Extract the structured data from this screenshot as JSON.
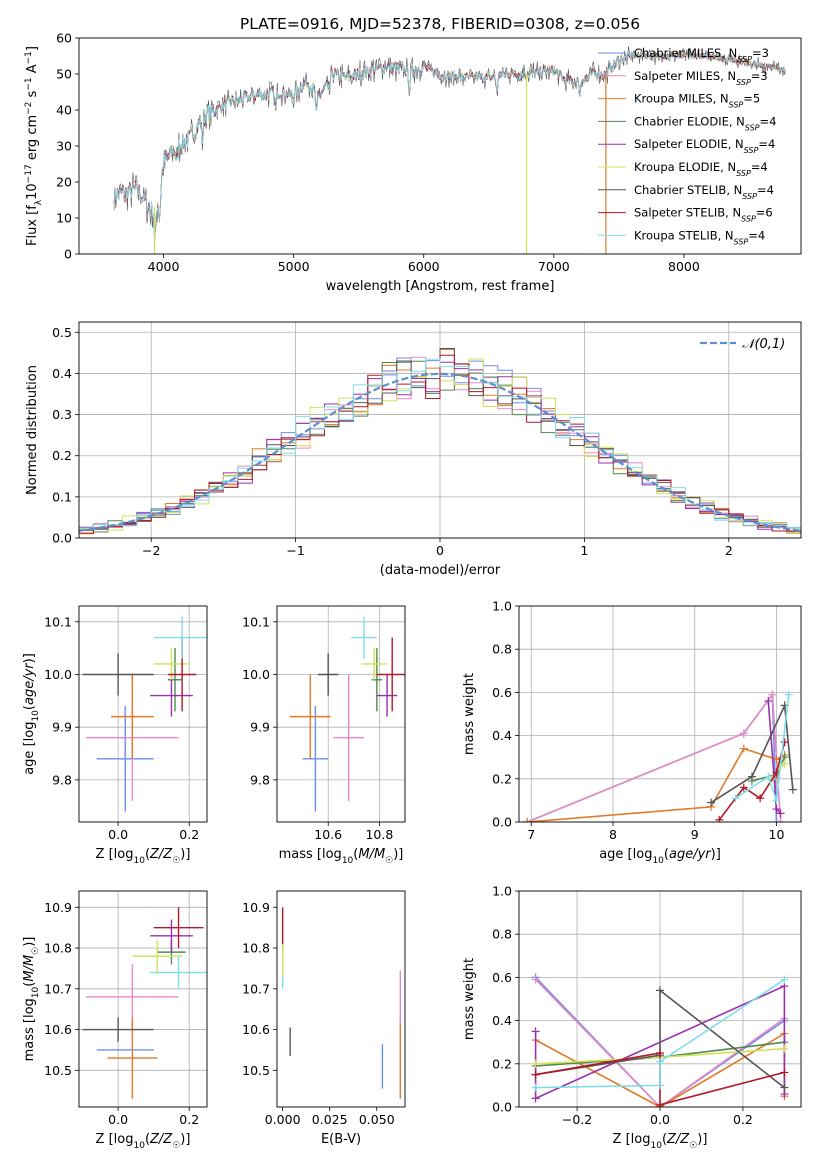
{
  "title": "PLATE=0916, MJD=52378, FIBERID=0308, z=0.056",
  "colors": {
    "chabrier_miles": "#6b8ee8",
    "salpeter_miles": "#e78ac3",
    "kroupa_miles": "#e07b29",
    "chabrier_elodie": "#4f8a4f",
    "salpeter_elodie": "#9b2fae",
    "kroupa_elodie": "#d4e157",
    "chabrier_stelib": "#555555",
    "salpeter_stelib": "#b2182b",
    "kroupa_stelib": "#80deea",
    "model_gauss": "#5b8fd1",
    "grid": "#b0b0b0"
  },
  "chart_data": [
    {
      "id": "spectrum",
      "type": "line",
      "xlabel": "wavelength [Angstrom, rest frame]",
      "ylabel": "Flux [fλ10⁻¹⁷ erg cm⁻² s⁻¹ A⁻¹]",
      "xlim": [
        3350,
        8900
      ],
      "ylim": [
        0,
        60
      ],
      "xticks": [
        4000,
        5000,
        6000,
        7000,
        8000
      ],
      "yticks": [
        0,
        10,
        20,
        30,
        40,
        50,
        60
      ],
      "grid": false,
      "legend": "upper right",
      "legend_entries": [
        {
          "key": "chabrier_miles",
          "label": "Chabrier MILES, N",
          "sub": "SSP",
          "tail": "=3"
        },
        {
          "key": "salpeter_miles",
          "label": "Salpeter MILES, N",
          "sub": "SSP",
          "tail": "=3"
        },
        {
          "key": "kroupa_miles",
          "label": "Kroupa MILES, N",
          "sub": "SSP",
          "tail": "=5"
        },
        {
          "key": "chabrier_elodie",
          "label": "Chabrier ELODIE, N",
          "sub": "SSP",
          "tail": "=4"
        },
        {
          "key": "salpeter_elodie",
          "label": "Salpeter ELODIE, N",
          "sub": "SSP",
          "tail": "=4"
        },
        {
          "key": "kroupa_elodie",
          "label": "Kroupa ELODIE, N",
          "sub": "SSP",
          "tail": "=4"
        },
        {
          "key": "chabrier_stelib",
          "label": "Chabrier STELIB, N",
          "sub": "SSP",
          "tail": "=4"
        },
        {
          "key": "salpeter_stelib",
          "label": "Salpeter STELIB, N",
          "sub": "SSP",
          "tail": "=6"
        },
        {
          "key": "kroupa_stelib",
          "label": "Kroupa STELIB, N",
          "sub": "SSP",
          "tail": "=4"
        }
      ],
      "spectrum_shape": {
        "x": [
          3620,
          3700,
          3800,
          3900,
          3950,
          4000,
          4100,
          4200,
          4300,
          4400,
          4500,
          4700,
          4900,
          5000,
          5100,
          5200,
          5300,
          5400,
          5500,
          5700,
          5900,
          6000,
          6100,
          6300,
          6500,
          6600,
          6800,
          7000,
          7100,
          7200,
          7300,
          7400,
          7500,
          7600,
          8200,
          8500,
          8800
        ],
        "y": [
          16,
          17,
          18,
          12,
          14,
          25,
          30,
          32,
          38,
          40,
          42,
          44,
          45,
          44,
          48,
          44,
          50,
          49,
          50,
          52,
          51,
          52,
          50,
          49,
          49,
          50,
          50,
          51,
          48,
          48,
          50,
          50,
          54,
          55,
          55,
          53,
          51
        ]
      },
      "model_dropouts": [
        {
          "key": "kroupa_elodie",
          "x": 3930
        },
        {
          "key": "kroupa_elodie",
          "x": 6790
        },
        {
          "key": "kroupa_miles",
          "x": 7400
        }
      ]
    },
    {
      "id": "residuals",
      "type": "bar",
      "xlabel": "(data-model)/error",
      "ylabel": "Normed distribution",
      "xlim": [
        -2.5,
        2.5
      ],
      "ylim": [
        0,
        0.525
      ],
      "xticks": [
        -2,
        -1,
        0,
        1,
        2
      ],
      "yticks": [
        0.0,
        0.1,
        0.2,
        0.3,
        0.4,
        0.5
      ],
      "grid": true,
      "legend": "upper right",
      "legend_label": "𝒩(0,1)",
      "bin_width": 0.1
    },
    {
      "id": "age_vs_Z",
      "type": "scatter",
      "xlabel": "Z [log₁₀(Z/Z☉)]",
      "ylabel": "age  [log₁₀(age/yr)]",
      "xlim": [
        -0.11,
        0.25
      ],
      "ylim": [
        9.72,
        10.13
      ],
      "xticks": [
        0.0,
        0.2
      ],
      "yticks": [
        9.8,
        9.9,
        10.0,
        10.1
      ],
      "grid": true,
      "points": [
        {
          "key": "chabrier_miles",
          "x": 0.02,
          "y": 9.84,
          "xerr": 0.08,
          "yerr": 0.1
        },
        {
          "key": "salpeter_miles",
          "x": 0.04,
          "y": 9.88,
          "xerr": 0.13,
          "yerr": 0.12
        },
        {
          "key": "kroupa_miles",
          "x": 0.04,
          "y": 9.92,
          "xerr": 0.06,
          "yerr": 0.08
        },
        {
          "key": "chabrier_elodie",
          "x": 0.16,
          "y": 9.99,
          "xerr": 0.02,
          "yerr": 0.06
        },
        {
          "key": "salpeter_elodie",
          "x": 0.15,
          "y": 9.96,
          "xerr": 0.06,
          "yerr": 0.04
        },
        {
          "key": "kroupa_elodie",
          "x": 0.15,
          "y": 10.02,
          "xerr": 0.05,
          "yerr": 0.03
        },
        {
          "key": "chabrier_stelib",
          "x": 0.0,
          "y": 10.0,
          "xerr": 0.1,
          "yerr": 0.04
        },
        {
          "key": "salpeter_stelib",
          "x": 0.18,
          "y": 10.0,
          "xerr": 0.04,
          "yerr": 0.07
        },
        {
          "key": "kroupa_stelib",
          "x": 0.18,
          "y": 10.07,
          "xerr": 0.08,
          "yerr": 0.04
        }
      ]
    },
    {
      "id": "age_vs_mass",
      "type": "scatter",
      "xlabel": "mass [log₁₀(M/M☉)]",
      "ylabel": "",
      "xlim": [
        10.4,
        10.9
      ],
      "ylim": [
        9.72,
        10.13
      ],
      "xticks": [
        10.6,
        10.8
      ],
      "yticks": [
        9.8,
        9.9,
        10.0,
        10.1
      ],
      "grid": true,
      "points": [
        {
          "key": "chabrier_miles",
          "x": 10.55,
          "y": 9.84,
          "xerr": 0.05,
          "yerr": 0.1
        },
        {
          "key": "salpeter_miles",
          "x": 10.68,
          "y": 9.88,
          "xerr": 0.06,
          "yerr": 0.12
        },
        {
          "key": "kroupa_miles",
          "x": 10.53,
          "y": 9.92,
          "xerr": 0.08,
          "yerr": 0.08
        },
        {
          "key": "chabrier_elodie",
          "x": 10.79,
          "y": 9.99,
          "xerr": 0.02,
          "yerr": 0.06
        },
        {
          "key": "salpeter_elodie",
          "x": 10.83,
          "y": 9.96,
          "xerr": 0.04,
          "yerr": 0.04
        },
        {
          "key": "kroupa_elodie",
          "x": 10.78,
          "y": 10.02,
          "xerr": 0.05,
          "yerr": 0.03
        },
        {
          "key": "chabrier_stelib",
          "x": 10.6,
          "y": 10.0,
          "xerr": 0.04,
          "yerr": 0.04
        },
        {
          "key": "salpeter_stelib",
          "x": 10.85,
          "y": 10.0,
          "xerr": 0.06,
          "yerr": 0.07
        },
        {
          "key": "kroupa_stelib",
          "x": 10.74,
          "y": 10.07,
          "xerr": 0.05,
          "yerr": 0.04
        }
      ]
    },
    {
      "id": "weight_vs_age",
      "type": "line",
      "xlabel": "age  [log₁₀(age/yr)]",
      "ylabel": "mass weight",
      "xlim": [
        6.85,
        10.3
      ],
      "ylim": [
        0,
        1.0
      ],
      "xticks": [
        7,
        8,
        9,
        10
      ],
      "yticks": [
        0.0,
        0.2,
        0.4,
        0.6,
        0.8,
        1.0
      ],
      "grid": true,
      "series": [
        {
          "key": "chabrier_miles",
          "x": [
            6.95,
            9.6,
            9.95,
            10.0
          ],
          "y": [
            0.0,
            0.41,
            0.59,
            0.0
          ]
        },
        {
          "key": "salpeter_miles",
          "x": [
            6.95,
            9.6,
            9.95,
            10.05
          ],
          "y": [
            0.0,
            0.41,
            0.59,
            0.0
          ]
        },
        {
          "key": "kroupa_miles",
          "x": [
            6.95,
            9.2,
            9.6,
            10.0,
            10.1
          ],
          "y": [
            0.0,
            0.07,
            0.34,
            0.29,
            0.31
          ]
        },
        {
          "key": "chabrier_elodie",
          "x": [
            9.7,
            10.0,
            10.1
          ],
          "y": [
            0.19,
            0.22,
            0.3
          ]
        },
        {
          "key": "salpeter_elodie",
          "x": [
            9.9,
            10.0,
            10.05
          ],
          "y": [
            0.56,
            0.06,
            0.04
          ]
        },
        {
          "key": "kroupa_elodie",
          "x": [
            9.95,
            10.05,
            10.1
          ],
          "y": [
            0.2,
            0.26,
            0.27
          ]
        },
        {
          "key": "chabrier_stelib",
          "x": [
            9.2,
            9.7,
            10.1,
            10.2
          ],
          "y": [
            0.09,
            0.21,
            0.54,
            0.15
          ]
        },
        {
          "key": "salpeter_stelib",
          "x": [
            9.3,
            9.6,
            9.8,
            10.0,
            10.1
          ],
          "y": [
            0.01,
            0.16,
            0.11,
            0.23,
            0.37
          ]
        },
        {
          "key": "kroupa_stelib",
          "x": [
            9.5,
            9.9,
            10.0,
            10.15
          ],
          "y": [
            0.11,
            0.21,
            0.1,
            0.59
          ]
        }
      ]
    },
    {
      "id": "mass_vs_Z",
      "type": "scatter",
      "xlabel": "Z [log₁₀(Z/Z☉)]",
      "ylabel": "mass [log₁₀(M/M☉)]",
      "xlim": [
        -0.11,
        0.25
      ],
      "ylim": [
        10.41,
        10.94
      ],
      "xticks": [
        0.0,
        0.2
      ],
      "yticks": [
        10.5,
        10.6,
        10.7,
        10.8,
        10.9
      ],
      "grid": true,
      "points": [
        {
          "key": "chabrier_miles",
          "x": 0.02,
          "y": 10.55,
          "xerr": 0.08,
          "yerr": 0.0
        },
        {
          "key": "salpeter_miles",
          "x": 0.04,
          "y": 10.68,
          "xerr": 0.13,
          "yerr": 0.08
        },
        {
          "key": "kroupa_miles",
          "x": 0.04,
          "y": 10.53,
          "xerr": 0.07,
          "yerr": 0.1
        },
        {
          "key": "chabrier_elodie",
          "x": 0.15,
          "y": 10.79,
          "xerr": 0.04,
          "yerr": 0.03
        },
        {
          "key": "salpeter_elodie",
          "x": 0.15,
          "y": 10.83,
          "xerr": 0.06,
          "yerr": 0.04
        },
        {
          "key": "kroupa_elodie",
          "x": 0.11,
          "y": 10.78,
          "xerr": 0.07,
          "yerr": 0.04
        },
        {
          "key": "chabrier_stelib",
          "x": 0.0,
          "y": 10.6,
          "xerr": 0.1,
          "yerr": 0.03
        },
        {
          "key": "salpeter_stelib",
          "x": 0.17,
          "y": 10.85,
          "xerr": 0.07,
          "yerr": 0.05
        },
        {
          "key": "kroupa_stelib",
          "x": 0.17,
          "y": 10.74,
          "xerr": 0.08,
          "yerr": 0.04
        }
      ]
    },
    {
      "id": "mass_vs_ebv",
      "type": "scatter",
      "xlabel": "E(B-V)",
      "ylabel": "",
      "xlim": [
        -0.003,
        0.065
      ],
      "ylim": [
        10.41,
        10.94
      ],
      "xticks": [
        0.0,
        0.025,
        0.05
      ],
      "xtick_labels": [
        "0.000",
        "0.025",
        "0.050"
      ],
      "yticks": [
        10.5,
        10.6,
        10.7,
        10.8,
        10.9
      ],
      "grid": false,
      "points": [
        {
          "key": "chabrier_miles",
          "x": 0.053,
          "y": 10.51,
          "yerr": 0.055
        },
        {
          "key": "kroupa_miles",
          "x": 0.0625,
          "y": 10.53,
          "yerr": 0.1
        },
        {
          "key": "salpeter_miles",
          "x": 0.0625,
          "y": 10.68,
          "yerr": 0.065
        },
        {
          "key": "chabrier_stelib",
          "x": 0.004,
          "y": 10.57,
          "yerr": 0.035
        },
        {
          "key": "salpeter_stelib",
          "x": 0.0,
          "y": 10.85,
          "yerr": 0.05
        },
        {
          "key": "kroupa_stelib",
          "x": 0.0,
          "y": 10.74,
          "yerr": 0.04
        },
        {
          "key": "kroupa_elodie",
          "x": 0.0,
          "y": 10.77,
          "yerr": 0.04
        }
      ]
    },
    {
      "id": "weight_vs_Z",
      "type": "line",
      "xlabel": "Z [log₁₀(Z/Z☉)]",
      "ylabel": "mass weight",
      "xlim": [
        -0.34,
        0.34
      ],
      "ylim": [
        0,
        1.0
      ],
      "xticks": [
        -0.2,
        0.0,
        0.2
      ],
      "yticks": [
        0.0,
        0.2,
        0.4,
        0.6,
        0.8,
        1.0
      ],
      "grid": true,
      "series": [
        {
          "key": "chabrier_miles",
          "x": [
            -0.3,
            0.0,
            0.3
          ],
          "y": [
            0.6,
            0.0,
            0.4
          ]
        },
        {
          "key": "salpeter_miles",
          "x": [
            -0.3,
            0.0,
            0.3
          ],
          "y": [
            0.59,
            0.0,
            0.41
          ]
        },
        {
          "key": "kroupa_miles",
          "x": [
            -0.3,
            0.0,
            0.3,
            0.3
          ],
          "y": [
            0.31,
            0.0,
            0.34,
            0.05
          ]
        },
        {
          "key": "chabrier_elodie",
          "x": [
            -0.3,
            0.0,
            0.3
          ],
          "y": [
            0.19,
            0.23,
            0.3
          ]
        },
        {
          "key": "salpeter_elodie",
          "x": [
            -0.3,
            -0.3,
            0.3,
            0.3
          ],
          "y": [
            0.35,
            0.04,
            0.56,
            0.06
          ]
        },
        {
          "key": "kroupa_elodie",
          "x": [
            -0.3,
            0.0,
            0.3
          ],
          "y": [
            0.2,
            0.23,
            0.27
          ]
        },
        {
          "key": "chabrier_stelib",
          "x": [
            -0.3,
            0.0,
            0.0,
            0.3
          ],
          "y": [
            0.15,
            0.24,
            0.54,
            0.09
          ]
        },
        {
          "key": "salpeter_stelib",
          "x": [
            -0.3,
            0.0,
            0.0,
            0.3
          ],
          "y": [
            0.15,
            0.25,
            0.01,
            0.16
          ]
        },
        {
          "key": "kroupa_stelib",
          "x": [
            -0.3,
            0.0,
            0.0,
            0.3
          ],
          "y": [
            0.09,
            0.1,
            0.21,
            0.59
          ]
        }
      ]
    }
  ]
}
